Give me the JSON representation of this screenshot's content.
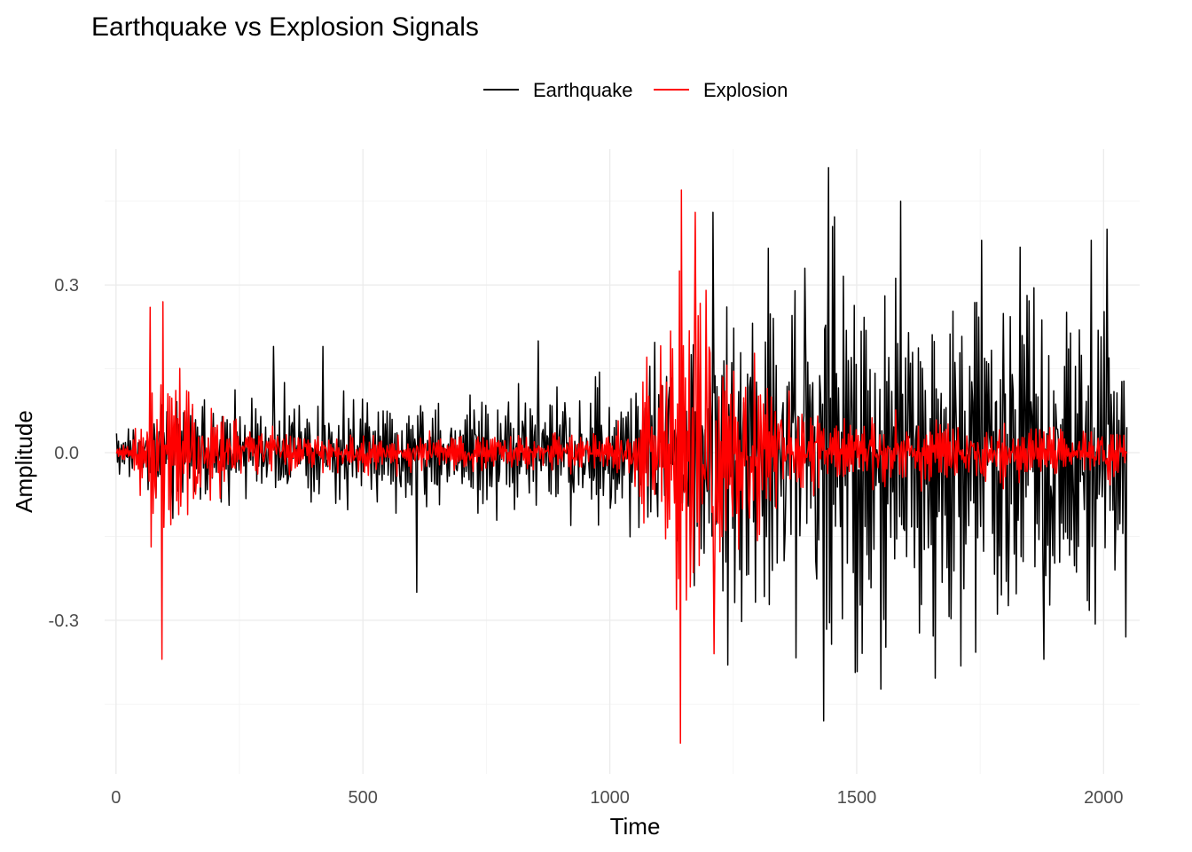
{
  "chart_data": {
    "type": "line",
    "title": "Earthquake vs Explosion Signals",
    "xlabel": "Time",
    "ylabel": "Amplitude",
    "xlim": [
      -50,
      2100
    ],
    "ylim": [
      -0.575,
      0.575
    ],
    "x_ticks": [
      0,
      500,
      1000,
      1500,
      2000
    ],
    "x_tick_labels": [
      "0",
      "500",
      "1000",
      "1500",
      "2000"
    ],
    "y_ticks": [
      -0.3,
      0.0,
      0.3
    ],
    "y_tick_labels": [
      "-0.3",
      "0.0",
      "0.3"
    ],
    "grid": true,
    "legend": {
      "position": "top",
      "orientation": "horizontal"
    },
    "x_range": [
      1,
      2048
    ],
    "series": [
      {
        "name": "Earthquake",
        "color": "#000000",
        "envelope": [
          [
            0,
            0.05
          ],
          [
            50,
            0.05
          ],
          [
            100,
            0.12
          ],
          [
            300,
            0.12
          ],
          [
            600,
            0.12
          ],
          [
            900,
            0.12
          ],
          [
            1000,
            0.14
          ],
          [
            1100,
            0.22
          ],
          [
            1200,
            0.3
          ],
          [
            1300,
            0.38
          ],
          [
            1400,
            0.42
          ],
          [
            1500,
            0.42
          ],
          [
            1600,
            0.38
          ],
          [
            1800,
            0.35
          ],
          [
            2048,
            0.32
          ]
        ],
        "samples_per_unit": 0.5,
        "period": 5,
        "peaks": [
          [
            320,
            0.19
          ],
          [
            420,
            0.19
          ],
          [
            610,
            -0.25
          ],
          [
            855,
            0.2
          ],
          [
            1210,
            0.43
          ],
          [
            1240,
            -0.38
          ],
          [
            1395,
            0.33
          ],
          [
            1433,
            -0.48
          ],
          [
            1443,
            0.51
          ],
          [
            1590,
            0.45
          ],
          [
            1880,
            -0.37
          ],
          [
            1975,
            0.38
          ],
          [
            2008,
            0.4
          ],
          [
            2045,
            -0.33
          ]
        ]
      },
      {
        "name": "Explosion",
        "color": "#ff0000",
        "envelope": [
          [
            0,
            0.01
          ],
          [
            30,
            0.02
          ],
          [
            60,
            0.15
          ],
          [
            90,
            0.2
          ],
          [
            150,
            0.14
          ],
          [
            250,
            0.06
          ],
          [
            400,
            0.04
          ],
          [
            1000,
            0.04
          ],
          [
            1050,
            0.08
          ],
          [
            1100,
            0.22
          ],
          [
            1140,
            0.38
          ],
          [
            1180,
            0.35
          ],
          [
            1240,
            0.25
          ],
          [
            1300,
            0.18
          ],
          [
            1400,
            0.08
          ],
          [
            2048,
            0.05
          ]
        ],
        "samples_per_unit": 0.5,
        "period": 4,
        "peaks": [
          [
            70,
            0.26
          ],
          [
            95,
            0.27
          ],
          [
            93,
            -0.37
          ],
          [
            1146,
            0.47
          ],
          [
            1143,
            -0.52
          ],
          [
            1174,
            0.43
          ],
          [
            1211,
            -0.36
          ]
        ]
      }
    ]
  }
}
